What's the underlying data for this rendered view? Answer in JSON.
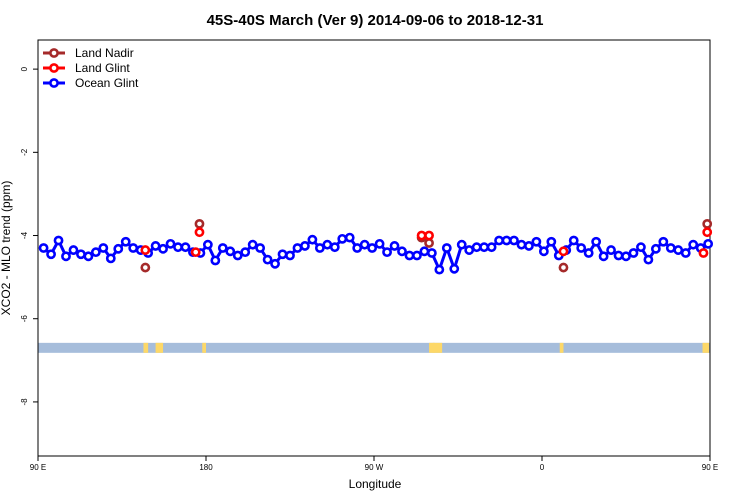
{
  "chart_data": {
    "type": "line",
    "title": "45S-40S March (Ver 9)   2014-09-06 to 2018-12-31",
    "xlabel": "Longitude",
    "ylabel": "XCO2 - MLO trend (ppm)",
    "xlim": [
      90,
      450
    ],
    "ylim": [
      -9.3,
      0.7
    ],
    "x_ticks": [
      90,
      180,
      270,
      360,
      450
    ],
    "x_tick_labels": [
      "90 E",
      "180",
      "90 W",
      "0",
      "90 E"
    ],
    "y_ticks": [
      0,
      -2,
      -4,
      -6,
      -8
    ],
    "y_tick_labels": [
      "0",
      "-2",
      "-4",
      "-6",
      "-8"
    ],
    "grid": false,
    "legend_position": "top-left",
    "series": [
      {
        "name": "Land Nadir",
        "color": "#a52a2a",
        "x": [
          147.5,
          176.5,
          295.5,
          299.5,
          371.5,
          448.5
        ],
        "y": [
          -4.77,
          -3.72,
          -4.05,
          -4.18,
          -4.77,
          -3.72
        ]
      },
      {
        "name": "Land Glint",
        "color": "#ff0000",
        "x": [
          147.5,
          174.5,
          176.5,
          295.5,
          299.5,
          371.5,
          446.5,
          448.5
        ],
        "y": [
          -4.35,
          -4.4,
          -3.92,
          -4.0,
          -4.0,
          -4.38,
          -4.42,
          -3.92
        ]
      },
      {
        "name": "Ocean Glint",
        "color": "#0000ff",
        "x": [
          93,
          97,
          101,
          105,
          109,
          113,
          117,
          121,
          125,
          129,
          133,
          137,
          141,
          145,
          149,
          153,
          157,
          161,
          165,
          169,
          173,
          177,
          181,
          185,
          189,
          193,
          197,
          201,
          205,
          209,
          213,
          217,
          221,
          225,
          229,
          233,
          237,
          241,
          245,
          249,
          253,
          257,
          261,
          265,
          269,
          273,
          277,
          281,
          285,
          289,
          293,
          297,
          301,
          305,
          309,
          313,
          317,
          321,
          325,
          329,
          333,
          337,
          341,
          345,
          349,
          353,
          357,
          361,
          365,
          369,
          373,
          377,
          381,
          385,
          389,
          393,
          397,
          401,
          405,
          409,
          413,
          417,
          421,
          425,
          429,
          433,
          437,
          441,
          445,
          449
        ],
        "y": [
          -4.3,
          -4.45,
          -4.12,
          -4.5,
          -4.35,
          -4.45,
          -4.5,
          -4.4,
          -4.3,
          -4.55,
          -4.32,
          -4.15,
          -4.3,
          -4.35,
          -4.42,
          -4.25,
          -4.32,
          -4.2,
          -4.28,
          -4.28,
          -4.4,
          -4.42,
          -4.22,
          -4.6,
          -4.3,
          -4.38,
          -4.48,
          -4.4,
          -4.22,
          -4.3,
          -4.58,
          -4.68,
          -4.45,
          -4.48,
          -4.3,
          -4.25,
          -4.1,
          -4.3,
          -4.22,
          -4.28,
          -4.08,
          -4.05,
          -4.3,
          -4.22,
          -4.3,
          -4.2,
          -4.4,
          -4.25,
          -4.38,
          -4.48,
          -4.48,
          -4.38,
          -4.42,
          -4.82,
          -4.3,
          -4.8,
          -4.22,
          -4.35,
          -4.28,
          -4.28,
          -4.28,
          -4.12,
          -4.12,
          -4.12,
          -4.22,
          -4.25,
          -4.15,
          -4.38,
          -4.15,
          -4.48,
          -4.35,
          -4.12,
          -4.3,
          -4.42,
          -4.15,
          -4.5,
          -4.35,
          -4.48,
          -4.5,
          -4.42,
          -4.28,
          -4.58,
          -4.32,
          -4.15,
          -4.3,
          -4.35,
          -4.42,
          -4.22,
          -4.3,
          -4.2
        ]
      }
    ],
    "land_ocean_band": {
      "y_range": [
        -6.82,
        -6.58
      ],
      "ocean_color": "#a6bddb",
      "land_color": "#fdd868",
      "land_spans": [
        [
          146.5,
          149
        ],
        [
          153,
          157
        ],
        [
          178,
          180
        ],
        [
          299.5,
          302.5
        ],
        [
          301.5,
          306.5
        ],
        [
          369.5,
          371.5
        ],
        [
          446,
          449.5
        ]
      ]
    }
  }
}
